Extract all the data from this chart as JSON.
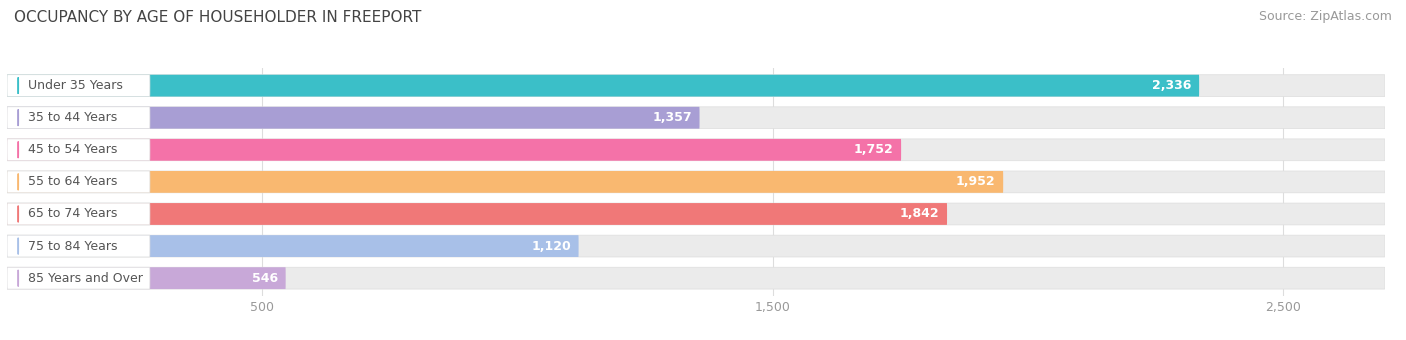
{
  "title": "OCCUPANCY BY AGE OF HOUSEHOLDER IN FREEPORT",
  "source": "Source: ZipAtlas.com",
  "categories": [
    "Under 35 Years",
    "35 to 44 Years",
    "45 to 54 Years",
    "55 to 64 Years",
    "65 to 74 Years",
    "75 to 84 Years",
    "85 Years and Over"
  ],
  "values": [
    2336,
    1357,
    1752,
    1952,
    1842,
    1120,
    546
  ],
  "bar_colors": [
    "#3BBFC8",
    "#A89ED4",
    "#F472A8",
    "#F9B870",
    "#F07878",
    "#A8C0E8",
    "#C8A8D8"
  ],
  "xlim_max": 2700,
  "xticks": [
    500,
    1500,
    2500
  ],
  "background_color": "#ffffff",
  "bar_bg_color": "#ebebeb",
  "title_color": "#444444",
  "source_color": "#999999",
  "label_color": "#555555",
  "title_fontsize": 11,
  "source_fontsize": 9,
  "bar_label_fontsize": 9,
  "value_fontsize": 9,
  "bar_height": 0.68,
  "bar_spacing": 1.0
}
